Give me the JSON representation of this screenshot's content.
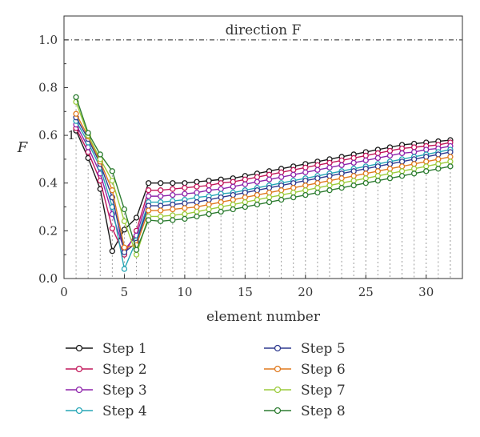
{
  "chart_data": {
    "type": "line",
    "title": "",
    "annotation": "direction F",
    "reference_line_y": 1.0,
    "xlabel": "element number",
    "ylabel": "F",
    "xlim": [
      0,
      33
    ],
    "ylim": [
      0,
      1.1
    ],
    "xticks": [
      0,
      5,
      10,
      15,
      20,
      25,
      30
    ],
    "yticks": [
      0.0,
      0.2,
      0.4,
      0.6,
      0.8,
      1.0
    ],
    "xtick_labels": [
      "0",
      "5",
      "10",
      "15",
      "20",
      "25",
      "30"
    ],
    "ytick_labels": [
      "0.0",
      "0.2",
      "0.4",
      "0.6",
      "0.8",
      "1.0"
    ],
    "grid": "dotted vertical drop lines at each element",
    "legend_position": "bottom, two columns",
    "x": [
      1,
      2,
      3,
      4,
      5,
      6,
      7,
      8,
      9,
      10,
      11,
      12,
      13,
      14,
      15,
      16,
      17,
      18,
      19,
      20,
      21,
      22,
      23,
      24,
      25,
      26,
      27,
      28,
      29,
      30,
      31,
      32
    ],
    "series": [
      {
        "name": "Step 1",
        "color": "#1a1a1a",
        "values": [
          0.62,
          0.505,
          0.375,
          0.115,
          0.205,
          0.255,
          0.4,
          0.4,
          0.4,
          0.4,
          0.405,
          0.41,
          0.415,
          0.42,
          0.43,
          0.44,
          0.45,
          0.46,
          0.47,
          0.48,
          0.49,
          0.5,
          0.51,
          0.52,
          0.53,
          0.54,
          0.55,
          0.56,
          0.565,
          0.57,
          0.575,
          0.58
        ]
      },
      {
        "name": "Step 2",
        "color": "#c2185b",
        "values": [
          0.63,
          0.53,
          0.41,
          0.21,
          0.1,
          0.2,
          0.37,
          0.37,
          0.375,
          0.38,
          0.385,
          0.39,
          0.4,
          0.405,
          0.415,
          0.425,
          0.435,
          0.445,
          0.455,
          0.465,
          0.475,
          0.485,
          0.495,
          0.505,
          0.515,
          0.525,
          0.535,
          0.545,
          0.55,
          0.555,
          0.56,
          0.57
        ]
      },
      {
        "name": "Step 3",
        "color": "#8e24aa",
        "values": [
          0.645,
          0.55,
          0.44,
          0.27,
          0.12,
          0.18,
          0.345,
          0.345,
          0.35,
          0.355,
          0.36,
          0.37,
          0.375,
          0.385,
          0.395,
          0.405,
          0.415,
          0.425,
          0.435,
          0.445,
          0.455,
          0.465,
          0.475,
          0.485,
          0.495,
          0.505,
          0.515,
          0.525,
          0.53,
          0.54,
          0.545,
          0.555
        ]
      },
      {
        "name": "Step 4",
        "color": "#26a6b6",
        "values": [
          0.66,
          0.57,
          0.465,
          0.3,
          0.04,
          0.16,
          0.32,
          0.32,
          0.325,
          0.33,
          0.34,
          0.345,
          0.355,
          0.36,
          0.37,
          0.38,
          0.39,
          0.4,
          0.41,
          0.42,
          0.43,
          0.44,
          0.45,
          0.46,
          0.47,
          0.48,
          0.49,
          0.5,
          0.51,
          0.52,
          0.53,
          0.54
        ]
      },
      {
        "name": "Step 5",
        "color": "#2f3a8f",
        "values": [
          0.675,
          0.585,
          0.48,
          0.34,
          0.11,
          0.15,
          0.305,
          0.305,
          0.31,
          0.315,
          0.32,
          0.33,
          0.34,
          0.35,
          0.36,
          0.37,
          0.38,
          0.39,
          0.4,
          0.41,
          0.42,
          0.43,
          0.44,
          0.45,
          0.46,
          0.47,
          0.48,
          0.49,
          0.5,
          0.51,
          0.52,
          0.53
        ]
      },
      {
        "name": "Step 6",
        "color": "#e07a1f",
        "values": [
          0.69,
          0.595,
          0.49,
          0.37,
          0.13,
          0.14,
          0.285,
          0.285,
          0.29,
          0.295,
          0.3,
          0.31,
          0.32,
          0.33,
          0.34,
          0.35,
          0.36,
          0.37,
          0.38,
          0.39,
          0.4,
          0.41,
          0.42,
          0.43,
          0.44,
          0.45,
          0.46,
          0.47,
          0.48,
          0.49,
          0.5,
          0.51
        ]
      },
      {
        "name": "Step 7",
        "color": "#9ccc3c",
        "values": [
          0.74,
          0.6,
          0.5,
          0.41,
          0.24,
          0.1,
          0.26,
          0.26,
          0.265,
          0.27,
          0.28,
          0.29,
          0.3,
          0.31,
          0.32,
          0.33,
          0.34,
          0.35,
          0.36,
          0.37,
          0.38,
          0.39,
          0.4,
          0.41,
          0.42,
          0.43,
          0.44,
          0.45,
          0.46,
          0.47,
          0.48,
          0.49
        ]
      },
      {
        "name": "Step 8",
        "color": "#2e7d32",
        "values": [
          0.76,
          0.61,
          0.52,
          0.45,
          0.29,
          0.12,
          0.245,
          0.24,
          0.245,
          0.25,
          0.26,
          0.27,
          0.28,
          0.29,
          0.3,
          0.31,
          0.32,
          0.33,
          0.34,
          0.35,
          0.36,
          0.37,
          0.38,
          0.39,
          0.4,
          0.41,
          0.42,
          0.43,
          0.44,
          0.45,
          0.46,
          0.47
        ]
      }
    ]
  }
}
